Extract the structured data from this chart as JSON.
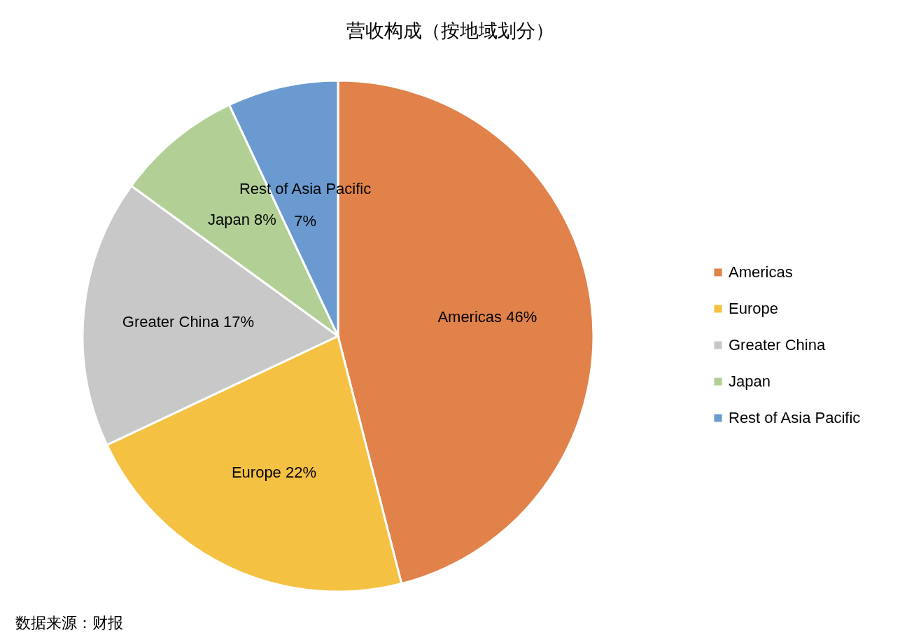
{
  "chart_data": {
    "type": "pie",
    "title": "营收构成（按地域划分）",
    "categories": [
      "Americas",
      "Europe",
      "Greater China",
      "Japan",
      "Rest of Asia Pacific"
    ],
    "values": [
      46,
      22,
      17,
      8,
      7
    ],
    "value_labels": [
      "46%",
      "22%",
      "17%",
      "8%",
      "7%"
    ],
    "colors": [
      "#e0824a",
      "#f5c143",
      "#c8c8c8",
      "#b2d096",
      "#6a9ad0"
    ],
    "legend": "right",
    "annotations": [
      "数据来源：财报"
    ]
  }
}
